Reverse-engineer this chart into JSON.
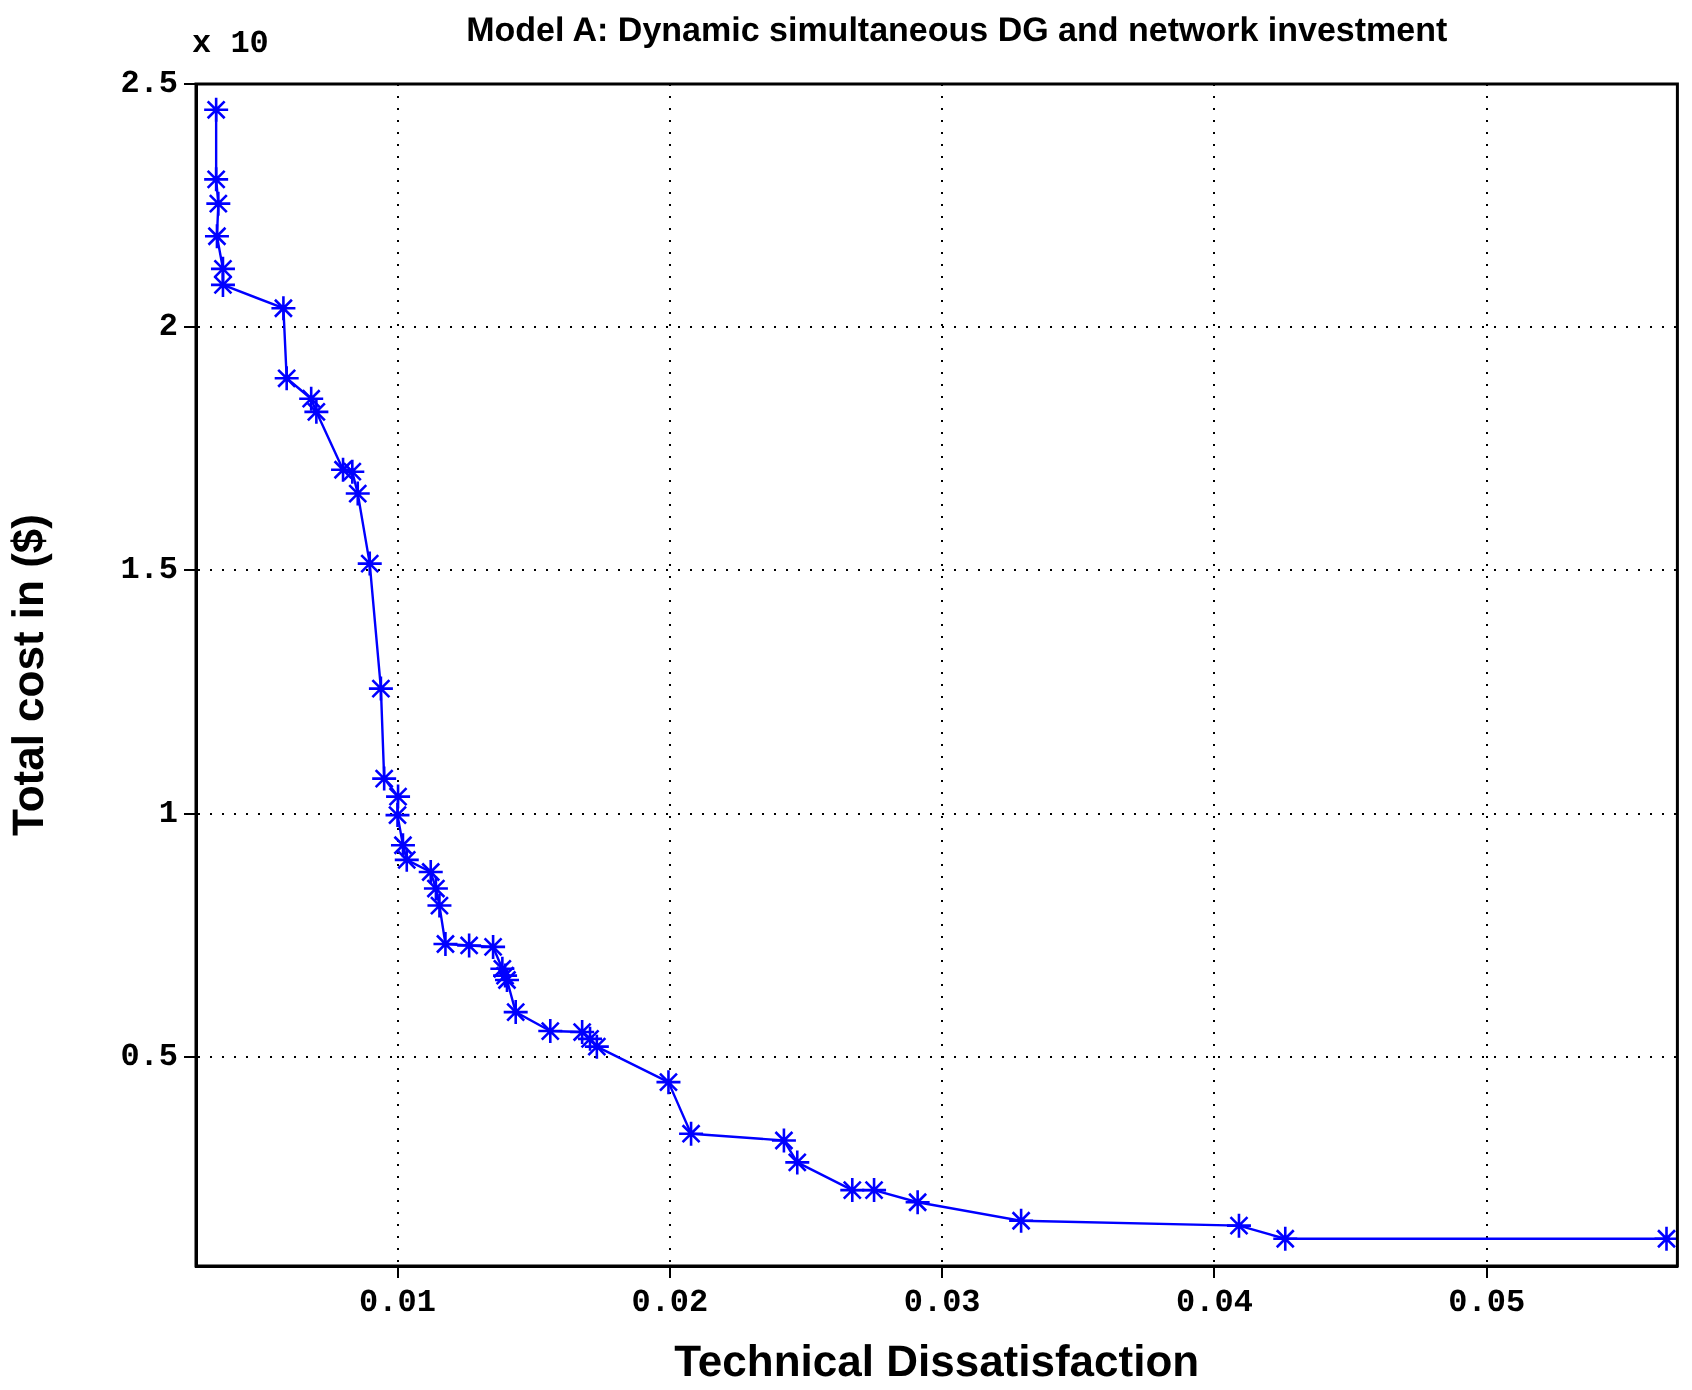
{
  "chart_data": {
    "type": "line",
    "title": "Model A: Dynamic simultaneous DG and network investment",
    "xlabel": "Technical Dissatisfaction",
    "ylabel": "Total cost in ($)",
    "annotations": [
      "x 10"
    ],
    "series": [
      {
        "color": "#0000ff",
        "x": [
          0.00334,
          0.00334,
          0.00342,
          0.00337,
          0.00359,
          0.00359,
          0.00581,
          0.00593,
          0.00683,
          0.00702,
          0.008,
          0.00834,
          0.00854,
          0.00898,
          0.00939,
          0.00951,
          0.01002,
          0.01,
          0.0102,
          0.01034,
          0.01122,
          0.01141,
          0.01154,
          0.01176,
          0.01263,
          0.01351,
          0.01385,
          0.01395,
          0.01402,
          0.01434,
          0.01561,
          0.01678,
          0.01707,
          0.01732,
          0.01995,
          0.02078,
          0.02419,
          0.02468,
          0.0267,
          0.0275,
          0.0291,
          0.0329,
          0.0409,
          0.0426,
          0.0566
        ],
        "values": [
          2.447,
          2.304,
          2.254,
          2.187,
          2.12,
          2.087,
          2.039,
          1.895,
          1.853,
          1.826,
          1.707,
          1.703,
          1.658,
          1.514,
          1.257,
          1.072,
          1.035,
          0.997,
          0.935,
          0.905,
          0.88,
          0.846,
          0.811,
          0.732,
          0.729,
          0.726,
          0.681,
          0.667,
          0.658,
          0.592,
          0.553,
          0.551,
          0.537,
          0.521,
          0.448,
          0.342,
          0.328,
          0.283,
          0.226,
          0.226,
          0.201,
          0.163,
          0.153,
          0.126,
          0.126
        ]
      }
    ],
    "xlim": [
      0.0026,
      0.057
    ],
    "xticks": [
      0.01,
      0.02,
      0.03,
      0.04,
      0.05
    ],
    "ylim": [
      0.07,
      2.5
    ],
    "yticks": [
      0.5,
      1,
      1.5,
      2,
      2.5
    ],
    "grid": true,
    "legend": false,
    "marker": "cross",
    "line_style": "solid"
  }
}
